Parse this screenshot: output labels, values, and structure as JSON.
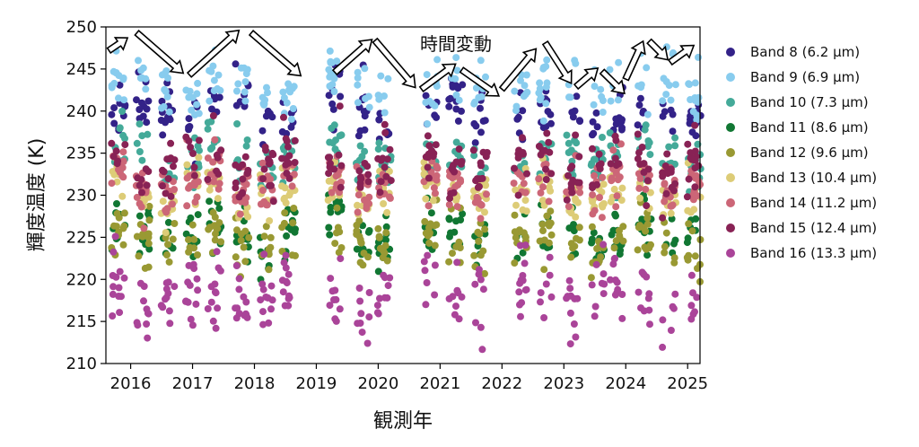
{
  "chart_data": {
    "type": "scatter",
    "xlabel": "観測年",
    "ylabel": "輝度温度 (K)",
    "xlim": [
      2015.6,
      2025.2
    ],
    "ylim": [
      210,
      250
    ],
    "xticks": [
      "2016",
      "2017",
      "2018",
      "2019",
      "2020",
      "2021",
      "2022",
      "2023",
      "2024",
      "2025"
    ],
    "yticks": [
      "210",
      "215",
      "220",
      "225",
      "230",
      "235",
      "240",
      "245",
      "250"
    ],
    "grid": false,
    "legend": "right",
    "annotations": {
      "label": "時間変動",
      "arrows": [
        {
          "from": [
            2015.65,
            247.2
          ],
          "to": [
            2015.95,
            248.7
          ]
        },
        {
          "from": [
            2016.1,
            249.3
          ],
          "to": [
            2016.85,
            244.5
          ]
        },
        {
          "from": [
            2016.95,
            244.3
          ],
          "to": [
            2017.75,
            249.6
          ]
        },
        {
          "from": [
            2017.95,
            249.3
          ],
          "to": [
            2018.75,
            244.2
          ]
        },
        {
          "from": [
            2019.3,
            244.6
          ],
          "to": [
            2019.9,
            248.5
          ]
        },
        {
          "from": [
            2019.95,
            248.4
          ],
          "to": [
            2020.6,
            242.8
          ]
        },
        {
          "from": [
            2020.7,
            242.6
          ],
          "to": [
            2021.25,
            245.6
          ]
        },
        {
          "from": [
            2021.35,
            244.9
          ],
          "to": [
            2021.95,
            241.8
          ]
        },
        {
          "from": [
            2022.0,
            242.6
          ],
          "to": [
            2022.55,
            247.4
          ]
        },
        {
          "from": [
            2022.7,
            248.1
          ],
          "to": [
            2023.12,
            243.3
          ]
        },
        {
          "from": [
            2023.2,
            242.9
          ],
          "to": [
            2023.55,
            245.1
          ]
        },
        {
          "from": [
            2023.62,
            244.7
          ],
          "to": [
            2023.98,
            242.1
          ]
        },
        {
          "from": [
            2024.0,
            243.8
          ],
          "to": [
            2024.28,
            248.3
          ]
        },
        {
          "from": [
            2024.38,
            248.3
          ],
          "to": [
            2024.68,
            246.1
          ]
        },
        {
          "from": [
            2024.72,
            245.8
          ],
          "to": [
            2025.1,
            247.8
          ]
        }
      ]
    },
    "clusters": [
      2015.8,
      2016.2,
      2016.6,
      2017.0,
      2017.35,
      2017.8,
      2018.2,
      2018.55,
      2019.3,
      2019.75,
      2020.1,
      2020.85,
      2021.25,
      2021.65,
      2022.3,
      2022.7,
      2023.15,
      2023.55,
      2023.85,
      2024.3,
      2024.7,
      2025.1
    ],
    "series": [
      {
        "name": "Band 8 (6.2 μm)",
        "color": "#332288",
        "mean": 240.0,
        "spread": 1.8
      },
      {
        "name": "Band 9 (6.9 μm)",
        "color": "#88ccee",
        "mean": 243.0,
        "spread": 1.6
      },
      {
        "name": "Band 10 (7.3 μm)",
        "color": "#44aa99",
        "mean": 234.5,
        "spread": 1.6
      },
      {
        "name": "Band 11 (8.6 μm)",
        "color": "#117733",
        "mean": 225.5,
        "spread": 1.8
      },
      {
        "name": "Band 12 (9.6 μm)",
        "color": "#999933",
        "mean": 224.5,
        "spread": 1.6
      },
      {
        "name": "Band 13 (10.4 μm)",
        "color": "#ddcc77",
        "mean": 230.5,
        "spread": 1.6
      },
      {
        "name": "Band 14 (11.2 μm)",
        "color": "#cc6677",
        "mean": 231.5,
        "spread": 1.6
      },
      {
        "name": "Band 15 (12.4 μm)",
        "color": "#882255",
        "mean": 233.5,
        "spread": 1.8
      },
      {
        "name": "Band 16 (13.3 μm)",
        "color": "#aa4499",
        "mean": 218.0,
        "spread": 2.2
      }
    ]
  }
}
